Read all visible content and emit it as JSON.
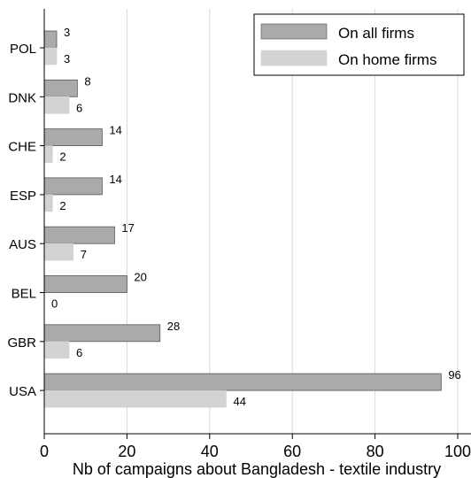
{
  "chart_data": {
    "type": "bar",
    "orientation": "horizontal",
    "categories": [
      "POL",
      "DNK",
      "CHE",
      "ESP",
      "AUS",
      "BEL",
      "GBR",
      "USA"
    ],
    "series": [
      {
        "name": "On all firms",
        "values": [
          3,
          8,
          14,
          14,
          17,
          20,
          28,
          96
        ],
        "color": "#aaaaaa"
      },
      {
        "name": "On home firms",
        "values": [
          3,
          6,
          2,
          2,
          7,
          0,
          6,
          44
        ],
        "color": "#d3d3d3"
      }
    ],
    "xlabel": "Nb of campaigns about Bangladesh - textile industry",
    "xlim": [
      0,
      100
    ],
    "xticks": [
      0,
      20,
      40,
      60,
      80,
      100
    ],
    "grid": "vertical",
    "legend_position": "top-right"
  }
}
